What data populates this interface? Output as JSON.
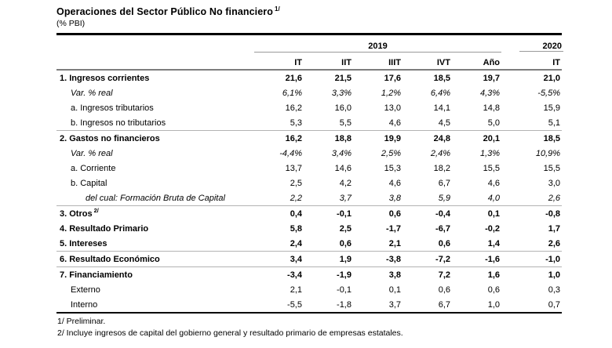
{
  "title": "Operaciones del Sector Público No financiero",
  "title_superscript": "1/",
  "subtitle": "(% PBI)",
  "table": {
    "year_groups": [
      {
        "label": "2019",
        "colspan": 5
      },
      {
        "label": "2020",
        "colspan": 1
      }
    ],
    "columns": [
      "IT",
      "IIT",
      "IIIT",
      "IVT",
      "Año",
      "IT"
    ],
    "rows": [
      {
        "label": "1. Ingresos corrientes",
        "style": "bold",
        "indent": 0,
        "values": [
          "21,6",
          "21,5",
          "17,6",
          "18,5",
          "19,7",
          "21,0"
        ]
      },
      {
        "label": "Var. % real",
        "style": "italic",
        "indent": 1,
        "values": [
          "6,1%",
          "3,3%",
          "1,2%",
          "6,4%",
          "4,3%",
          "-5,5%"
        ]
      },
      {
        "label": "a. Ingresos tributarios",
        "style": "normal",
        "indent": 1,
        "values": [
          "16,2",
          "16,0",
          "13,0",
          "14,1",
          "14,8",
          "15,9"
        ]
      },
      {
        "label": "b. Ingresos no tributarios",
        "style": "normal",
        "indent": 1,
        "values": [
          "5,3",
          "5,5",
          "4,6",
          "4,5",
          "5,0",
          "5,1"
        ],
        "separator_after": true
      },
      {
        "label": "2. Gastos no financieros",
        "style": "bold",
        "indent": 0,
        "values": [
          "16,2",
          "18,8",
          "19,9",
          "24,8",
          "20,1",
          "18,5"
        ]
      },
      {
        "label": "Var. % real",
        "style": "italic",
        "indent": 1,
        "values": [
          "-4,4%",
          "3,4%",
          "2,5%",
          "2,4%",
          "1,3%",
          "10,9%"
        ]
      },
      {
        "label": "a. Corriente",
        "style": "normal",
        "indent": 1,
        "values": [
          "13,7",
          "14,6",
          "15,3",
          "18,2",
          "15,5",
          "15,5"
        ]
      },
      {
        "label": "b. Capital",
        "style": "normal",
        "indent": 1,
        "values": [
          "2,5",
          "4,2",
          "4,6",
          "6,7",
          "4,6",
          "3,0"
        ]
      },
      {
        "label": "del cual: Formación Bruta de Capital",
        "style": "italic",
        "indent": 2,
        "values": [
          "2,2",
          "3,7",
          "3,8",
          "5,9",
          "4,0",
          "2,6"
        ],
        "separator_after": true
      },
      {
        "label": "3. Otros",
        "superscript": "2/",
        "style": "bold",
        "indent": 0,
        "values": [
          "0,4",
          "-0,1",
          "0,6",
          "-0,4",
          "0,1",
          "-0,8"
        ]
      },
      {
        "label": "4. Resultado Primario",
        "style": "bold",
        "indent": 0,
        "values": [
          "5,8",
          "2,5",
          "-1,7",
          "-6,7",
          "-0,2",
          "1,7"
        ]
      },
      {
        "label": "5. Intereses",
        "style": "bold",
        "indent": 0,
        "values": [
          "2,4",
          "0,6",
          "2,1",
          "0,6",
          "1,4",
          "2,6"
        ],
        "separator_after": true
      },
      {
        "label": "6. Resultado Económico",
        "style": "bold",
        "indent": 0,
        "values": [
          "3,4",
          "1,9",
          "-3,8",
          "-7,2",
          "-1,6",
          "-1,0"
        ],
        "separator_after": true
      },
      {
        "label": "7. Financiamiento",
        "style": "bold",
        "indent": 0,
        "values": [
          "-3,4",
          "-1,9",
          "3,8",
          "7,2",
          "1,6",
          "1,0"
        ]
      },
      {
        "label": "Externo",
        "style": "normal",
        "indent": 1,
        "values": [
          "2,1",
          "-0,1",
          "0,1",
          "0,6",
          "0,6",
          "0,3"
        ]
      },
      {
        "label": "Interno",
        "style": "normal",
        "indent": 1,
        "values": [
          "-5,5",
          "-1,8",
          "3,7",
          "6,7",
          "1,0",
          "0,7"
        ]
      }
    ]
  },
  "footnotes": [
    "1/ Preliminar.",
    "2/ Incluye ingresos de capital del gobierno general y resultado primario de empresas estatales."
  ]
}
